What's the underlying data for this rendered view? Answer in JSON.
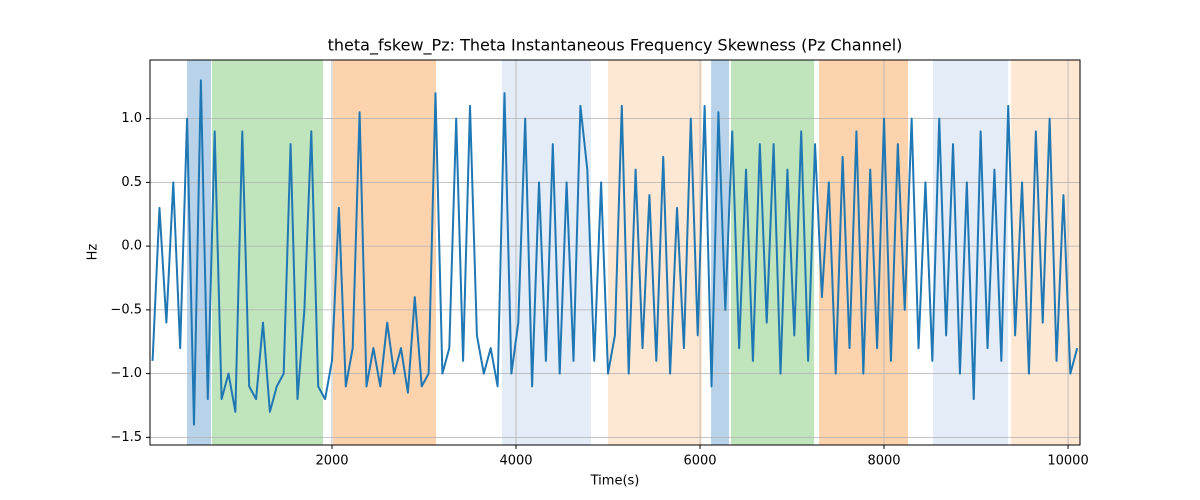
{
  "chart_data": {
    "type": "line",
    "title": "theta_fskew_Pz: Theta Instantaneous Frequency Skewness (Pz Channel)",
    "xlabel": "Time(s)",
    "ylabel": "Hz",
    "xlim": [
      22,
      10130
    ],
    "ylim": [
      -1.56,
      1.46
    ],
    "xticks": [
      2000,
      4000,
      6000,
      8000,
      10000
    ],
    "yticks": [
      {
        "value": -1.5,
        "label": "−1.5"
      },
      {
        "value": -1,
        "label": "−1.0"
      },
      {
        "value": -0.5,
        "label": "−0.5"
      },
      {
        "value": 0,
        "label": "0.0"
      },
      {
        "value": 0.5,
        "label": "0.5"
      },
      {
        "value": 1,
        "label": "1.0"
      }
    ],
    "grid": true,
    "spans": [
      {
        "start": 424,
        "end": 685,
        "color": "#b8d3e9"
      },
      {
        "start": 696,
        "end": 1902,
        "color": "#c0e4bc"
      },
      {
        "start": 2011,
        "end": 3131,
        "color": "#fdd3ae"
      },
      {
        "start": 3848,
        "end": 4815,
        "color": "#e3ecf7"
      },
      {
        "start": 5000,
        "end": 6022,
        "color": "#fee8d4"
      },
      {
        "start": 6120,
        "end": 6315,
        "color": "#b8d3e9"
      },
      {
        "start": 6337,
        "end": 7240,
        "color": "#c0e4bc"
      },
      {
        "start": 7294,
        "end": 8261,
        "color": "#fdd3ae"
      },
      {
        "start": 8533,
        "end": 9348,
        "color": "#e3ecf7"
      },
      {
        "start": 9381,
        "end": 10130,
        "color": "#fee8d4"
      }
    ],
    "x": [
      50,
      125,
      200,
      275,
      350,
      425,
      500,
      575,
      650,
      725,
      800,
      875,
      950,
      1025,
      1100,
      1175,
      1250,
      1325,
      1400,
      1475,
      1550,
      1625,
      1700,
      1775,
      1850,
      1925,
      2000,
      2075,
      2150,
      2225,
      2300,
      2375,
      2450,
      2525,
      2600,
      2675,
      2750,
      2825,
      2900,
      2975,
      3050,
      3125,
      3200,
      3275,
      3350,
      3425,
      3500,
      3575,
      3650,
      3725,
      3800,
      3875,
      3950,
      4025,
      4100,
      4175,
      4250,
      4325,
      4400,
      4475,
      4550,
      4625,
      4700,
      4775,
      4850,
      4925,
      5000,
      5075,
      5150,
      5225,
      5300,
      5375,
      5450,
      5525,
      5600,
      5675,
      5750,
      5825,
      5900,
      5975,
      6050,
      6125,
      6200,
      6275,
      6350,
      6425,
      6500,
      6575,
      6650,
      6725,
      6800,
      6875,
      6950,
      7025,
      7100,
      7175,
      7250,
      7325,
      7400,
      7475,
      7550,
      7625,
      7700,
      7775,
      7850,
      7925,
      8000,
      8075,
      8150,
      8225,
      8300,
      8375,
      8450,
      8525,
      8600,
      8675,
      8750,
      8825,
      8900,
      8975,
      9050,
      9125,
      9200,
      9275,
      9350,
      9425,
      9500,
      9575,
      9650,
      9725,
      9800,
      9875,
      9950,
      10025,
      10100
    ],
    "series": [
      {
        "color": "#1f77b4",
        "values": [
          -0.9,
          0.3,
          -0.6,
          0.5,
          -0.8,
          1.0,
          -1.4,
          1.3,
          -1.2,
          0.9,
          -1.2,
          -1.0,
          -1.3,
          0.9,
          -1.1,
          -1.2,
          -0.6,
          -1.3,
          -1.1,
          -1.0,
          0.8,
          -1.2,
          -0.5,
          0.9,
          -1.1,
          -1.2,
          -0.9,
          0.3,
          -1.1,
          -0.8,
          1.05,
          -1.1,
          -0.8,
          -1.1,
          -0.6,
          -1.0,
          -0.8,
          -1.15,
          -0.4,
          -1.1,
          -1.0,
          1.2,
          -1.0,
          -0.8,
          1.0,
          -0.9,
          1.1,
          -0.7,
          -1.0,
          -0.8,
          -1.1,
          1.2,
          -1.0,
          -0.6,
          1.0,
          -1.1,
          0.5,
          -0.9,
          0.8,
          -1.0,
          0.5,
          -0.9,
          1.1,
          0.6,
          -0.9,
          0.5,
          -1.0,
          -0.7,
          1.1,
          -1.0,
          0.6,
          -0.8,
          0.4,
          -0.9,
          0.7,
          -1.0,
          0.3,
          -0.8,
          1.0,
          -0.7,
          1.1,
          -1.1,
          1.05,
          -0.5,
          0.9,
          -0.8,
          0.6,
          -0.9,
          0.8,
          -0.6,
          0.8,
          -1.0,
          0.6,
          -0.7,
          0.9,
          -0.9,
          0.8,
          -0.4,
          0.5,
          -1.0,
          0.7,
          -0.8,
          0.9,
          -1.0,
          0.6,
          -0.8,
          1.0,
          -0.9,
          0.8,
          -0.5,
          1.0,
          -0.8,
          0.5,
          -0.9,
          1.0,
          -0.7,
          0.8,
          -1.0,
          0.5,
          -1.2,
          0.9,
          -0.8,
          0.6,
          -0.9,
          1.1,
          -0.7,
          0.5,
          -1.0,
          0.9,
          -0.6,
          1.0,
          -0.9,
          0.4,
          -1.0,
          -0.8
        ]
      }
    ]
  }
}
